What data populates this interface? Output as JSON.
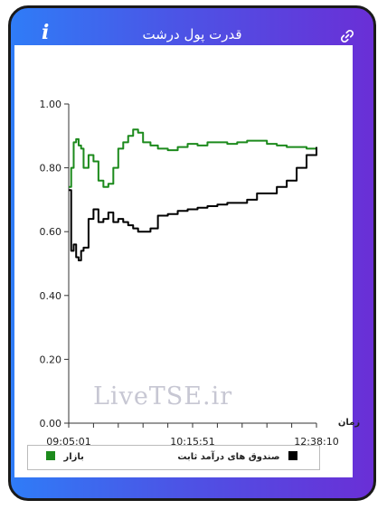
{
  "header": {
    "title": "قدرت پول درشت",
    "info_icon": "info-icon",
    "link_icon": "link-icon"
  },
  "watermark": "LiveTSE.ir",
  "colors": {
    "header_gradient_start": "#2f7cf7",
    "header_gradient_end": "#6a2fd6",
    "market": "#1c8a1c",
    "fixed_income": "#000000"
  },
  "chart_data": {
    "type": "line",
    "title": "",
    "xlabel": "زمان",
    "ylabel": "",
    "ylim": [
      0,
      1
    ],
    "yticks": [
      "0.00",
      "0.20",
      "0.40",
      "0.60",
      "0.80",
      "1.00"
    ],
    "xticks": [
      "09:05:01",
      "10:15:51",
      "12:38:10"
    ],
    "grid": false,
    "legend_placement": "bottom",
    "x_index": [
      0,
      1,
      2,
      3,
      4,
      5,
      6,
      8,
      10,
      12,
      14,
      16,
      18,
      20,
      22,
      24,
      26,
      28,
      30,
      33,
      36,
      40,
      44,
      48,
      52,
      56,
      60,
      64,
      68,
      72,
      76,
      80,
      84,
      88,
      92,
      96,
      100
    ],
    "series": [
      {
        "name": "بازار",
        "color": "#1c8a1c",
        "values": [
          0.74,
          0.8,
          0.88,
          0.89,
          0.87,
          0.86,
          0.8,
          0.84,
          0.82,
          0.76,
          0.74,
          0.75,
          0.8,
          0.86,
          0.88,
          0.9,
          0.92,
          0.91,
          0.88,
          0.87,
          0.86,
          0.855,
          0.865,
          0.875,
          0.87,
          0.88,
          0.88,
          0.875,
          0.88,
          0.885,
          0.885,
          0.875,
          0.87,
          0.865,
          0.865,
          0.86,
          0.865
        ]
      },
      {
        "name": "صندوق های درآمد ثابت",
        "color": "#000000",
        "values": [
          0.73,
          0.54,
          0.56,
          0.52,
          0.51,
          0.54,
          0.55,
          0.64,
          0.67,
          0.63,
          0.64,
          0.66,
          0.63,
          0.64,
          0.63,
          0.62,
          0.61,
          0.6,
          0.6,
          0.61,
          0.65,
          0.655,
          0.665,
          0.67,
          0.675,
          0.68,
          0.685,
          0.69,
          0.69,
          0.7,
          0.72,
          0.72,
          0.74,
          0.76,
          0.8,
          0.84,
          0.865
        ]
      }
    ]
  },
  "legend": {
    "market_label": "بازار",
    "fixed_income_label": "صندوق های درآمد ثابت"
  }
}
